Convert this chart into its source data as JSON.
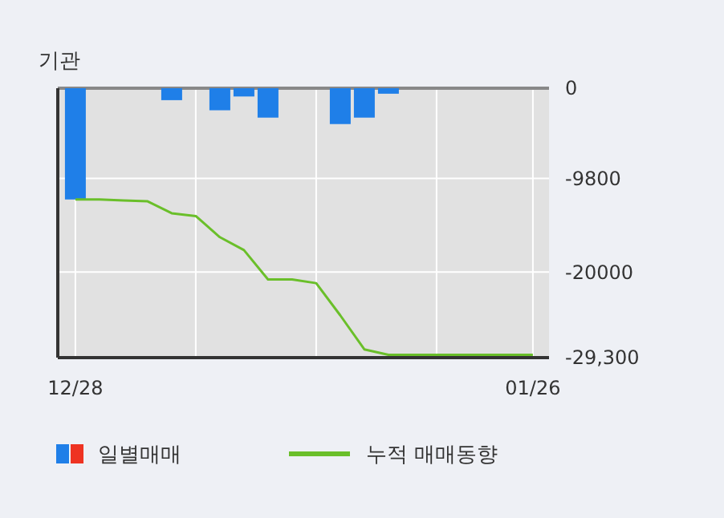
{
  "chart_data": {
    "type": "bar",
    "title": "기관",
    "categories": [
      "12/28",
      null,
      null,
      null,
      null,
      null,
      null,
      null,
      null,
      null,
      null,
      null,
      null,
      null,
      null,
      null,
      null,
      null,
      null,
      "01/26"
    ],
    "series": [
      {
        "name": "일별매매",
        "color": "#1f7fe8",
        "values": [
          -12100,
          0,
          0,
          0,
          -1300,
          0,
          -2400,
          -900,
          -3200,
          0,
          0,
          -3900,
          -3200,
          -600,
          0,
          0,
          0,
          0,
          0,
          0
        ]
      },
      {
        "name": "누적 매매동향",
        "type": "line",
        "color": "#6abf2a",
        "values": [
          -12100,
          -12100,
          -12200,
          -12300,
          -13600,
          -13900,
          -16200,
          -17600,
          -20800,
          -20800,
          -21200,
          -24700,
          -28400,
          -29000,
          -29000,
          -29000,
          -29000,
          -29000,
          -29000,
          -29000
        ]
      }
    ],
    "ylim": [
      -29300,
      0
    ],
    "yticks": [
      0,
      -9800,
      -20000,
      {
        "value": -29300,
        "label": "-29,300"
      }
    ],
    "grid": true,
    "legend": "bottom"
  }
}
